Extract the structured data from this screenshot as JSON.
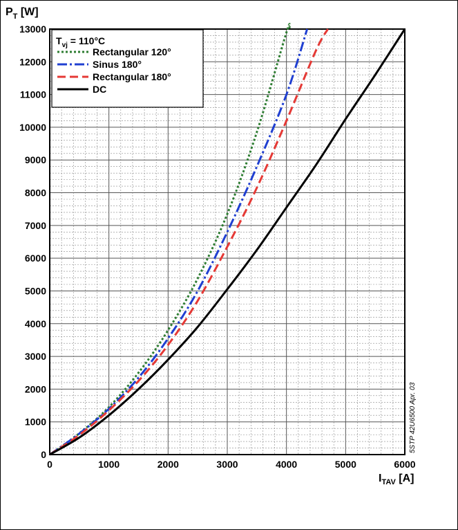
{
  "chart_data": {
    "type": "line",
    "ylabel": {
      "main": "P",
      "sub": "T",
      "unit": " [W]"
    },
    "xlabel": {
      "main": "I",
      "sub": "TAV",
      "unit": " [A]"
    },
    "xlim": [
      0,
      6000
    ],
    "ylim": [
      0,
      13000
    ],
    "xticks": [
      0,
      1000,
      2000,
      3000,
      4000,
      5000,
      6000
    ],
    "yticks": [
      0,
      1000,
      2000,
      3000,
      4000,
      5000,
      6000,
      7000,
      8000,
      9000,
      10000,
      11000,
      12000,
      13000
    ],
    "grid": true,
    "legend_placement": "top-left",
    "legend_title": {
      "main": "T",
      "sub": "vj",
      "rest": " = 110°C"
    },
    "series": [
      {
        "name": "Rectangular 120°",
        "color": "#2e7d32",
        "dash": "3,3",
        "x": [
          0,
          500,
          1000,
          1500,
          2000,
          2500,
          3000,
          3500,
          4000,
          4050
        ],
        "y": [
          0,
          650,
          1450,
          2500,
          3800,
          5380,
          7350,
          9850,
          12900,
          13000
        ]
      },
      {
        "name": "Sinus 180°",
        "color": "#1f3fd1",
        "dash": "14,4,3,4",
        "x": [
          0,
          500,
          1000,
          1500,
          2000,
          2500,
          3000,
          3500,
          4000,
          4350
        ],
        "y": [
          0,
          640,
          1400,
          2350,
          3550,
          5000,
          6800,
          8800,
          11000,
          13000
        ]
      },
      {
        "name": "Rectangular 180°",
        "color": "#e53935",
        "dash": "12,6",
        "x": [
          0,
          500,
          1000,
          1500,
          2000,
          2500,
          3000,
          3500,
          4000,
          4500,
          4700
        ],
        "y": [
          0,
          600,
          1350,
          2250,
          3350,
          4700,
          6350,
          8150,
          10200,
          12350,
          13000
        ]
      },
      {
        "name": "DC",
        "color": "#000000",
        "dash": "",
        "x": [
          0,
          500,
          1000,
          1500,
          2000,
          2500,
          3000,
          3500,
          4000,
          4500,
          5000,
          5500,
          6000
        ],
        "y": [
          0,
          520,
          1200,
          2000,
          2900,
          3900,
          5050,
          6250,
          7550,
          8850,
          10250,
          11600,
          13000
        ]
      }
    ]
  },
  "side_note": "5STP 42U6500 Apr. 03"
}
